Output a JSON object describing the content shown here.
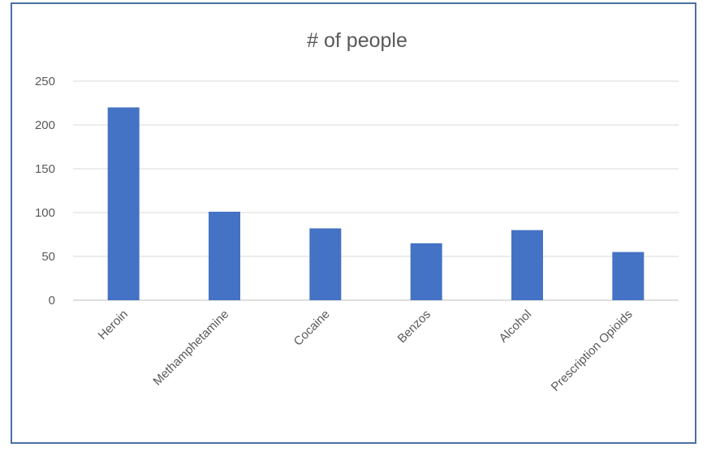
{
  "chart_data": {
    "type": "bar",
    "title": "# of people",
    "xlabel": "",
    "ylabel": "",
    "categories": [
      "Heroin",
      "Methamphetamine",
      "Cocaine",
      "Benzos",
      "Alcohol",
      "Prescription Opioids"
    ],
    "values": [
      220,
      101,
      82,
      65,
      80,
      55
    ],
    "ylim": [
      0,
      250
    ],
    "yticks": [
      0,
      50,
      100,
      150,
      200,
      250
    ],
    "grid": true,
    "legend": "none",
    "colors": {
      "bar": "#4472c4"
    }
  }
}
